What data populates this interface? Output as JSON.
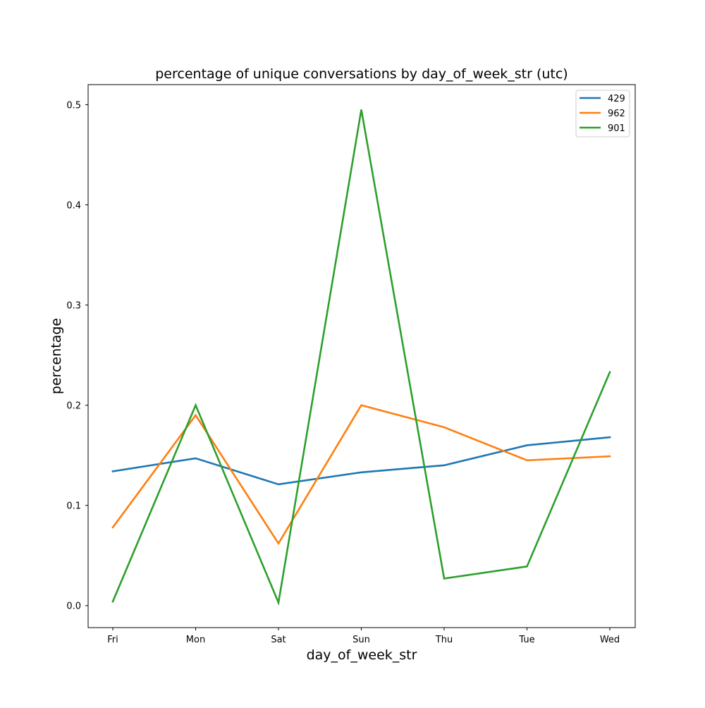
{
  "chart_data": {
    "type": "line",
    "title": "percentage of unique conversations by day_of_week_str (utc)",
    "xlabel": "day_of_week_str",
    "ylabel": "percentage",
    "categories": [
      "Fri",
      "Mon",
      "Sat",
      "Sun",
      "Thu",
      "Tue",
      "Wed"
    ],
    "ylim": [
      -0.022,
      0.52
    ],
    "yticks": [
      0.0,
      0.1,
      0.2,
      0.3,
      0.4,
      0.5
    ],
    "ytick_labels": [
      "0.0",
      "0.1",
      "0.2",
      "0.3",
      "0.4",
      "0.5"
    ],
    "grid": false,
    "legend_position": "upper right",
    "series": [
      {
        "name": "429",
        "color": "#1f77b4",
        "values": [
          0.134,
          0.147,
          0.121,
          0.133,
          0.14,
          0.16,
          0.168
        ]
      },
      {
        "name": "962",
        "color": "#ff7f0e",
        "values": [
          0.078,
          0.19,
          0.062,
          0.2,
          0.178,
          0.145,
          0.149
        ]
      },
      {
        "name": "901",
        "color": "#2ca02c",
        "values": [
          0.004,
          0.2,
          0.003,
          0.495,
          0.027,
          0.039,
          0.233
        ]
      }
    ]
  }
}
